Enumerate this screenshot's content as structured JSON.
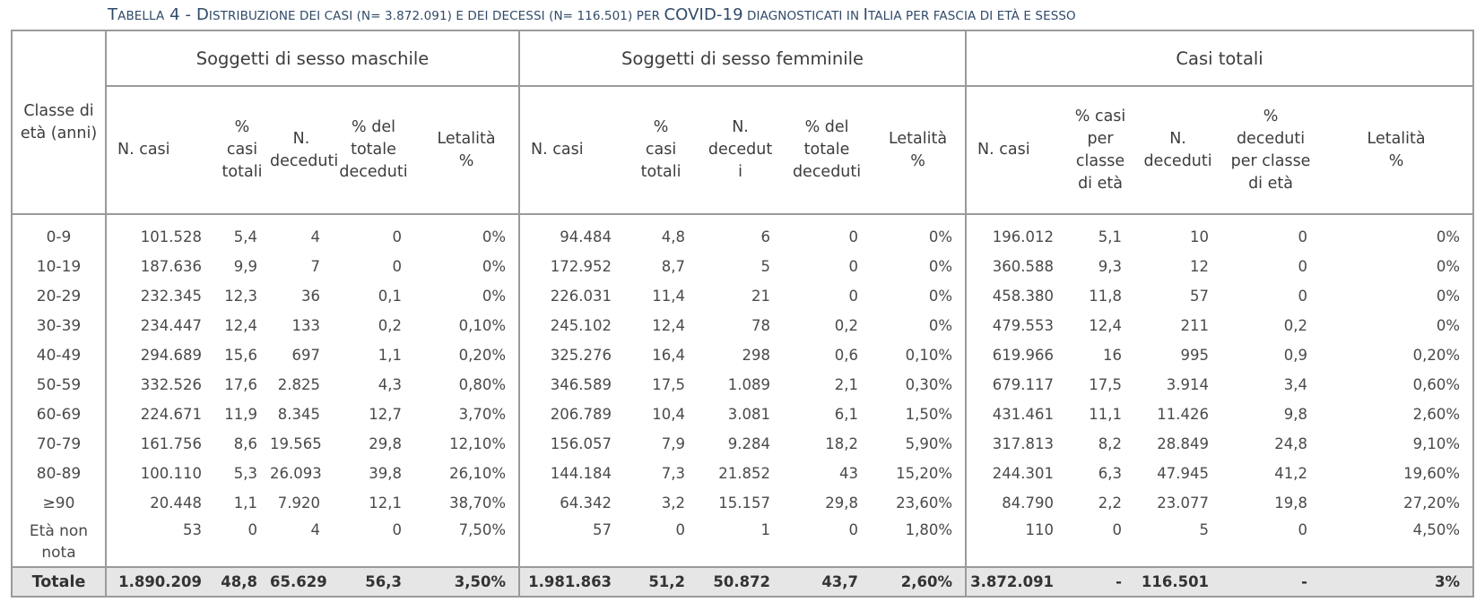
{
  "caption": {
    "prefix_big": "T",
    "prefix_small": "ABELLA",
    "number": "4 - D",
    "part2_small": "ISTRIBUZIONE DEI CASI (N= 3.872.091) E DEI DECESSI (N= 116.501) PER ",
    "covid": "COVID-19",
    "part3_small": " DIAGNOSTICATI IN ",
    "italia_big": "I",
    "part4_small": "TALIA PER FASCIA DI ETÀ E SESSO"
  },
  "header": {
    "class_label": "Classe di\netà (anni)",
    "groups": [
      "Soggetti di sesso maschile",
      "Soggetti di sesso femminile",
      "Casi totali"
    ],
    "male_cols": [
      "N. casi",
      "%\ncasi\ntotali",
      "N.\ndeceduti",
      "% del\ntotale\ndeceduti",
      "Letalità\n%"
    ],
    "female_cols": [
      "N. casi",
      "%\ncasi\ntotali",
      "N.\ndecedut\ni",
      "% del\ntotale\ndeceduti",
      "Letalità\n%"
    ],
    "total_cols": [
      "N. casi",
      "% casi\nper\nclasse\ndi età",
      "N.\ndeceduti",
      "%\ndeceduti\nper classe\ndi età",
      "Letalità\n%"
    ]
  },
  "rows": [
    {
      "age": "0-9",
      "values": [
        "101.528",
        "5,4",
        "4",
        "0",
        "0%",
        "94.484",
        "4,8",
        "6",
        "0",
        "0%",
        "196.012",
        "5,1",
        "10",
        "0",
        "0%"
      ]
    },
    {
      "age": "10-19",
      "values": [
        "187.636",
        "9,9",
        "7",
        "0",
        "0%",
        "172.952",
        "8,7",
        "5",
        "0",
        "0%",
        "360.588",
        "9,3",
        "12",
        "0",
        "0%"
      ]
    },
    {
      "age": "20-29",
      "values": [
        "232.345",
        "12,3",
        "36",
        "0,1",
        "0%",
        "226.031",
        "11,4",
        "21",
        "0",
        "0%",
        "458.380",
        "11,8",
        "57",
        "0",
        "0%"
      ]
    },
    {
      "age": "30-39",
      "values": [
        "234.447",
        "12,4",
        "133",
        "0,2",
        "0,10%",
        "245.102",
        "12,4",
        "78",
        "0,2",
        "0%",
        "479.553",
        "12,4",
        "211",
        "0,2",
        "0%"
      ]
    },
    {
      "age": "40-49",
      "values": [
        "294.689",
        "15,6",
        "697",
        "1,1",
        "0,20%",
        "325.276",
        "16,4",
        "298",
        "0,6",
        "0,10%",
        "619.966",
        "16",
        "995",
        "0,9",
        "0,20%"
      ]
    },
    {
      "age": "50-59",
      "values": [
        "332.526",
        "17,6",
        "2.825",
        "4,3",
        "0,80%",
        "346.589",
        "17,5",
        "1.089",
        "2,1",
        "0,30%",
        "679.117",
        "17,5",
        "3.914",
        "3,4",
        "0,60%"
      ]
    },
    {
      "age": "60-69",
      "values": [
        "224.671",
        "11,9",
        "8.345",
        "12,7",
        "3,70%",
        "206.789",
        "10,4",
        "3.081",
        "6,1",
        "1,50%",
        "431.461",
        "11,1",
        "11.426",
        "9,8",
        "2,60%"
      ]
    },
    {
      "age": "70-79",
      "values": [
        "161.756",
        "8,6",
        "19.565",
        "29,8",
        "12,10%",
        "156.057",
        "7,9",
        "9.284",
        "18,2",
        "5,90%",
        "317.813",
        "8,2",
        "28.849",
        "24,8",
        "9,10%"
      ]
    },
    {
      "age": "80-89",
      "values": [
        "100.110",
        "5,3",
        "26.093",
        "39,8",
        "26,10%",
        "144.184",
        "7,3",
        "21.852",
        "43",
        "15,20%",
        "244.301",
        "6,3",
        "47.945",
        "41,2",
        "19,60%"
      ]
    },
    {
      "age": "≥90",
      "values": [
        "20.448",
        "1,1",
        "7.920",
        "12,1",
        "38,70%",
        "64.342",
        "3,2",
        "15.157",
        "29,8",
        "23,60%",
        "84.790",
        "2,2",
        "23.077",
        "19,8",
        "27,20%"
      ]
    },
    {
      "age": "Età non\nnota",
      "values": [
        "53",
        "0",
        "4",
        "0",
        "7,50%",
        "57",
        "0",
        "1",
        "0",
        "1,80%",
        "110",
        "0",
        "5",
        "0",
        "4,50%"
      ]
    }
  ],
  "total": {
    "age": "Totale",
    "values": [
      "1.890.209",
      "48,8",
      "65.629",
      "56,3",
      "3,50%",
      "1.981.863",
      "51,2",
      "50.872",
      "43,7",
      "2,60%",
      "3.872.091",
      "-",
      "116.501",
      "-",
      "3%"
    ]
  }
}
